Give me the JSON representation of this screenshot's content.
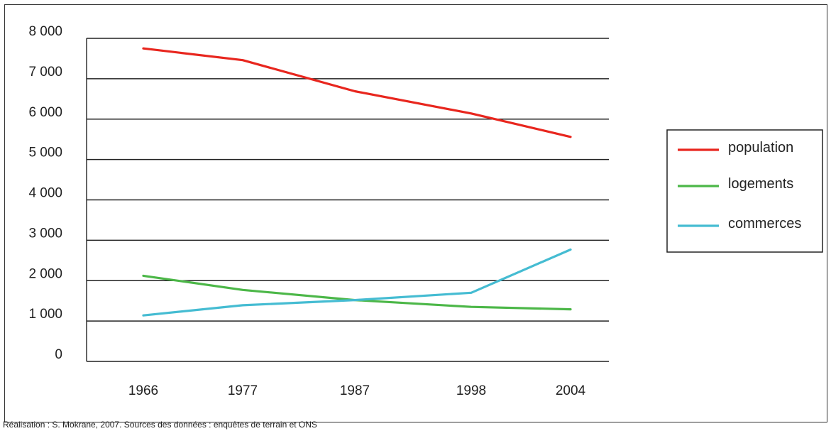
{
  "chart_data": {
    "type": "line",
    "categories": [
      "1966",
      "1977",
      "1987",
      "1998",
      "2004"
    ],
    "ylim": [
      0,
      8000
    ],
    "y_ticks": [
      0,
      1000,
      2000,
      3000,
      4000,
      5000,
      6000,
      7000,
      8000
    ],
    "y_tick_labels": [
      "0",
      "1 000",
      "2 000",
      "3 000",
      "4 000",
      "5 000",
      "6 000",
      "7 000",
      "8 000"
    ],
    "grid": true,
    "legend_position": "right",
    "series": [
      {
        "name": "population",
        "color": "#e8261e",
        "values": [
          7750,
          7460,
          6690,
          6140,
          5560
        ]
      },
      {
        "name": "logements",
        "color": "#4cb748",
        "values": [
          2120,
          1770,
          1520,
          1350,
          1290
        ]
      },
      {
        "name": "commerces",
        "color": "#45bcd2",
        "values": [
          1140,
          1390,
          1520,
          1700,
          2770
        ]
      }
    ],
    "source": "Réalisation : S. Mokrane, 2007. Sources des données : enquêtes de terrain et ONS"
  }
}
